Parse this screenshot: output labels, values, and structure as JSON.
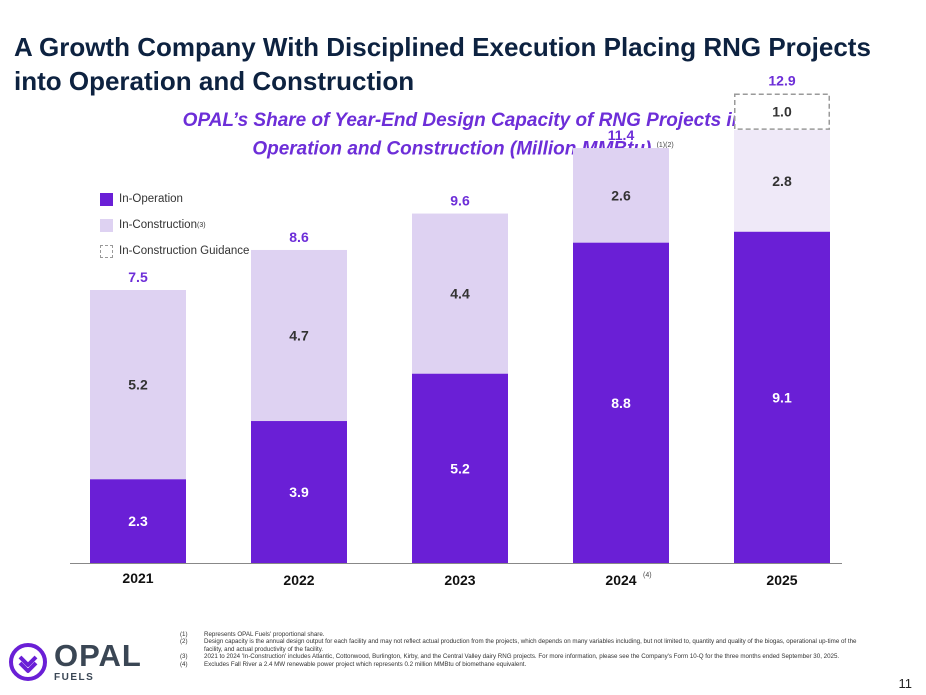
{
  "title": "A Growth Company With Disciplined Execution Placing RNG Projects into Operation and Construction",
  "subtitle_line1": "OPAL’s Share of Year-End Design Capacity of RNG Projects in",
  "subtitle_line2": "Operation and Construction (Million MMBtu)",
  "subtitle_notes": "(1)(2)",
  "legend": {
    "operation": "In-Operation",
    "construction": "In-Construction",
    "construction_note": "(3)",
    "guidance": "In-Construction Guidance"
  },
  "colors": {
    "operation": "#6a1fd6",
    "construction": "#ded2f2",
    "construction_2025": "#efe9f8",
    "total_label": "#6d2ed8",
    "title": "#0d2240"
  },
  "chart_data": {
    "type": "bar",
    "stacked": true,
    "categories": [
      "2021",
      "2022",
      "2023",
      "2024",
      "2025"
    ],
    "category_notes": [
      "",
      "",
      "",
      "(4)",
      ""
    ],
    "series": [
      {
        "name": "In-Operation",
        "values": [
          2.3,
          3.9,
          5.2,
          8.8,
          9.1
        ]
      },
      {
        "name": "In-Construction",
        "values": [
          5.2,
          4.7,
          4.4,
          2.6,
          2.8
        ]
      },
      {
        "name": "In-Construction Guidance",
        "values": [
          null,
          null,
          null,
          null,
          1.0
        ]
      }
    ],
    "totals": [
      7.5,
      8.6,
      9.6,
      11.4,
      12.9
    ],
    "ylim": [
      0,
      14
    ],
    "legend_position": "top-left"
  },
  "footnotes": [
    {
      "num": "(1)",
      "text": "Represents OPAL Fuels' proportional share."
    },
    {
      "num": "(2)",
      "text": "Design capacity is the annual design output for each facility and may not reflect actual production from the projects, which depends on many variables including, but not limited to, quantity and quality of the biogas, operational up-time of the facility, and actual productivity of the facility."
    },
    {
      "num": "(3)",
      "text": "2021 to 2024 'In-Construction' includes Atlantic, Cottonwood, Burlington, Kirby, and the Central Valley dairy RNG projects. For more information, please see the Company's Form 10-Q for the three months ended September 30, 2025."
    },
    {
      "num": "(4)",
      "text": "Excludes Fall River a 2.4 MW renewable power project which represents 0.2 million MMBtu of biomethane equivalent."
    }
  ],
  "logo": {
    "main": "OPAL",
    "sub": "FUELS"
  },
  "page_number": "11"
}
